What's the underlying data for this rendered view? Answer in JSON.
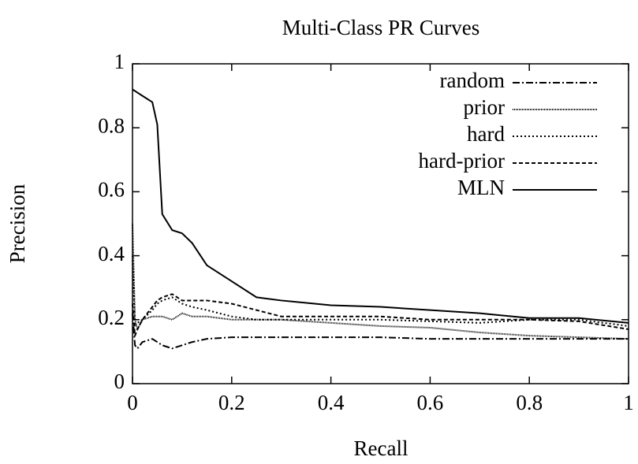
{
  "chart_data": {
    "type": "line",
    "title": "Multi-Class PR Curves",
    "x_label": "Recall",
    "y_label": "Precision",
    "x": [
      0,
      0.005,
      0.01,
      0.02,
      0.04,
      0.05,
      0.06,
      0.08,
      0.1,
      0.12,
      0.15,
      0.2,
      0.25,
      0.3,
      0.4,
      0.5,
      0.6,
      0.7,
      0.8,
      0.9,
      1
    ],
    "series": [
      {
        "name": "random",
        "color": "#000000",
        "dash": "9,3,2,3",
        "values": [
          0.22,
          0.12,
          0.11,
          0.13,
          0.14,
          0.13,
          0.12,
          0.11,
          0.12,
          0.13,
          0.14,
          0.145,
          0.145,
          0.145,
          0.145,
          0.145,
          0.14,
          0.14,
          0.14,
          0.14,
          0.14
        ]
      },
      {
        "name": "prior",
        "color": "#000000",
        "dash": "1,1",
        "values": [
          0.5,
          0.2,
          0.17,
          0.2,
          0.21,
          0.21,
          0.21,
          0.2,
          0.22,
          0.21,
          0.21,
          0.2,
          0.2,
          0.2,
          0.19,
          0.18,
          0.175,
          0.16,
          0.15,
          0.145,
          0.14
        ]
      },
      {
        "name": "hard",
        "color": "#000000",
        "dash": "2,3",
        "values": [
          0.4,
          0.18,
          0.19,
          0.2,
          0.23,
          0.25,
          0.26,
          0.27,
          0.25,
          0.24,
          0.23,
          0.21,
          0.2,
          0.2,
          0.2,
          0.2,
          0.195,
          0.19,
          0.2,
          0.2,
          0.18
        ]
      },
      {
        "name": "hard-prior",
        "color": "#000000",
        "dash": "5,3",
        "values": [
          0.25,
          0.15,
          0.17,
          0.2,
          0.24,
          0.26,
          0.27,
          0.28,
          0.26,
          0.26,
          0.26,
          0.25,
          0.23,
          0.21,
          0.21,
          0.21,
          0.2,
          0.2,
          0.2,
          0.195,
          0.17
        ]
      },
      {
        "name": "MLN",
        "color": "#000000",
        "dash": "none",
        "values": [
          0.92,
          0.915,
          0.91,
          0.9,
          0.88,
          0.81,
          0.53,
          0.48,
          0.47,
          0.44,
          0.37,
          0.32,
          0.27,
          0.26,
          0.245,
          0.24,
          0.23,
          0.22,
          0.205,
          0.205,
          0.19
        ]
      }
    ],
    "xlim": [
      0,
      1
    ],
    "ylim": [
      0,
      1
    ],
    "xticks": [
      0,
      0.2,
      0.4,
      0.6,
      0.8,
      1
    ],
    "yticks": [
      0,
      0.2,
      0.4,
      0.6,
      0.8,
      1
    ],
    "legend": "top right",
    "grid": false
  }
}
